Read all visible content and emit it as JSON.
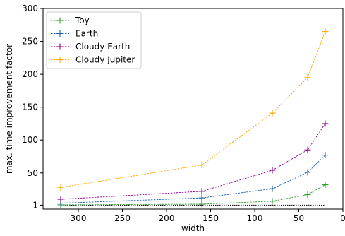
{
  "chart_data": {
    "type": "line",
    "xlabel": "width",
    "ylabel": "max. time improvement factor",
    "xlim": [
      340,
      0
    ],
    "ylim": [
      -5,
      300
    ],
    "x_ticks": [
      300,
      250,
      200,
      150,
      100,
      50,
      0
    ],
    "y_ticks": [
      1,
      50,
      100,
      150,
      200,
      250,
      300
    ],
    "x_tick_labels": [
      "300",
      "250",
      "200",
      "150",
      "100",
      "50",
      "0"
    ],
    "y_tick_labels": [
      "1",
      "50",
      "100",
      "150",
      "200",
      "250",
      "300"
    ],
    "x_inverted": true,
    "grid": false,
    "legend_position": "top-left",
    "x": [
      320,
      160,
      80,
      40,
      20
    ],
    "series": [
      {
        "name": "Toy",
        "color": "#2ca02c",
        "values": [
          1.5,
          2.5,
          7,
          17,
          32
        ]
      },
      {
        "name": "Earth",
        "color": "#1f5fa8",
        "values": [
          4,
          12,
          26,
          51,
          77
        ]
      },
      {
        "name": "Cloudy Earth",
        "color": "#8b008b",
        "values": [
          10,
          22,
          54,
          85,
          125
        ]
      },
      {
        "name": "Cloudy Jupiter",
        "color": "#ffa500",
        "values": [
          28,
          62,
          141,
          195,
          265
        ]
      }
    ],
    "baseline": {
      "y": 1,
      "x_from": 320,
      "x_to": 20,
      "color": "#000000"
    }
  }
}
